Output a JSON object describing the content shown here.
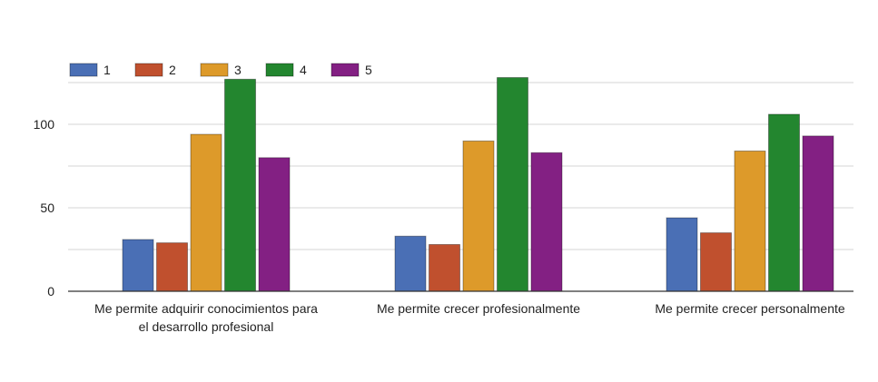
{
  "chart_data": {
    "type": "bar",
    "title": "",
    "xlabel": "",
    "ylabel": "",
    "categories": [
      [
        "Me permite adquirir conocimientos para",
        "el desarrollo profesional"
      ],
      [
        "Me permite crecer profesionalmente"
      ],
      [
        "Me permite crecer personalmente"
      ]
    ],
    "series": [
      {
        "name": "1",
        "color": "#4a6fb5",
        "values": [
          31,
          33,
          44
        ]
      },
      {
        "name": "2",
        "color": "#c0502e",
        "values": [
          29,
          28,
          35
        ]
      },
      {
        "name": "3",
        "color": "#dd9a2a",
        "values": [
          94,
          90,
          84
        ]
      },
      {
        "name": "4",
        "color": "#23862f",
        "values": [
          127,
          128,
          106
        ]
      },
      {
        "name": "5",
        "color": "#832083",
        "values": [
          80,
          83,
          93
        ]
      }
    ],
    "ylim": [
      0,
      125
    ],
    "yticks": [
      0,
      50,
      100
    ],
    "grid": true,
    "legend_position": "top-left"
  }
}
